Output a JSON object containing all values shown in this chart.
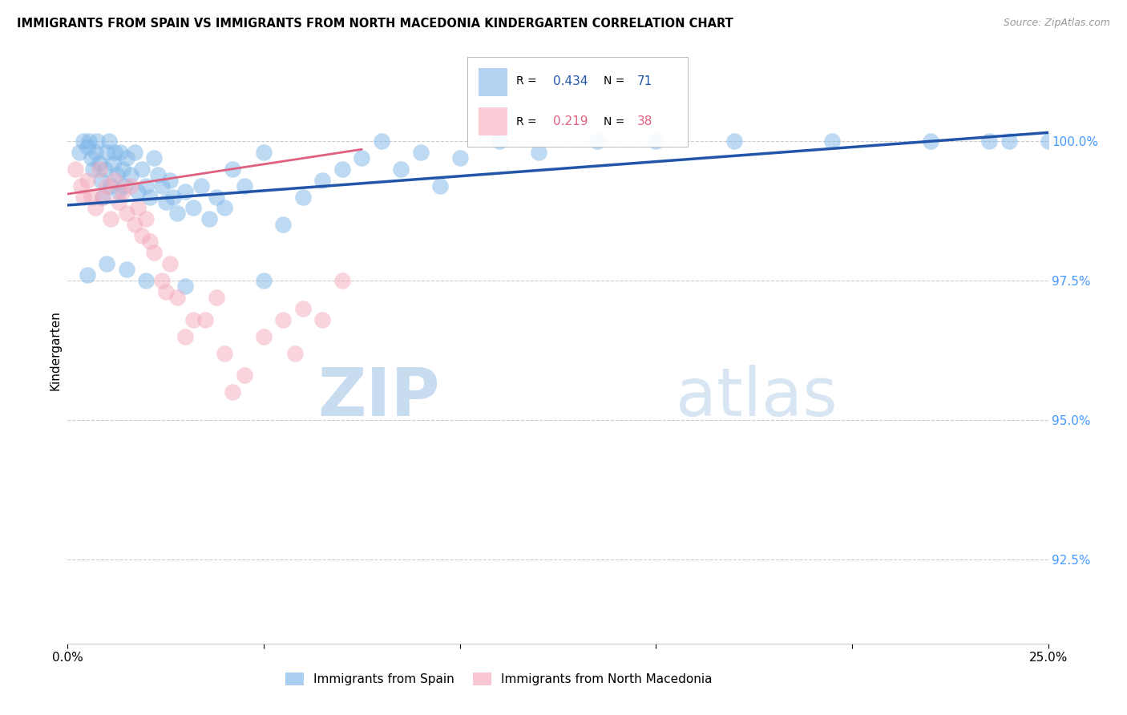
{
  "title": "IMMIGRANTS FROM SPAIN VS IMMIGRANTS FROM NORTH MACEDONIA KINDERGARTEN CORRELATION CHART",
  "source": "Source: ZipAtlas.com",
  "ylabel": "Kindergarten",
  "legend_spain": "Immigrants from Spain",
  "legend_macedonia": "Immigrants from North Macedonia",
  "spain_color": "#7EB6E8",
  "macedonia_color": "#F5AABC",
  "spain_line_color": "#2255AA",
  "macedonia_line_color": "#E06080",
  "r_spain": 0.434,
  "n_spain": 71,
  "r_macedonia": 0.219,
  "n_macedonia": 38,
  "x_range": [
    0.0,
    25.0
  ],
  "y_range": [
    91.0,
    101.5
  ],
  "y_ticks": [
    92.5,
    95.0,
    97.5,
    100.0
  ],
  "watermark_zip_color": "#C8DCF0",
  "watermark_atlas_color": "#C8DCF0",
  "spain_points_x": [
    0.3,
    0.4,
    0.5,
    0.55,
    0.6,
    0.65,
    0.7,
    0.75,
    0.8,
    0.85,
    0.9,
    0.95,
    1.0,
    1.05,
    1.1,
    1.15,
    1.2,
    1.25,
    1.3,
    1.35,
    1.4,
    1.45,
    1.5,
    1.6,
    1.7,
    1.8,
    1.9,
    2.0,
    2.1,
    2.2,
    2.3,
    2.4,
    2.5,
    2.6,
    2.7,
    2.8,
    3.0,
    3.2,
    3.4,
    3.6,
    3.8,
    4.0,
    4.2,
    4.5,
    5.0,
    5.5,
    6.0,
    6.5,
    7.0,
    7.5,
    8.0,
    8.5,
    9.0,
    9.5,
    10.0,
    11.0,
    12.0,
    13.5,
    15.0,
    17.0,
    19.5,
    22.0,
    23.5,
    24.0,
    25.0,
    0.5,
    1.0,
    1.5,
    2.0,
    3.0,
    5.0
  ],
  "spain_points_y": [
    99.8,
    100.0,
    99.9,
    100.0,
    99.7,
    99.5,
    99.8,
    100.0,
    99.6,
    99.3,
    99.0,
    99.5,
    99.8,
    100.0,
    99.2,
    99.6,
    99.8,
    99.4,
    99.1,
    99.8,
    99.5,
    99.2,
    99.7,
    99.4,
    99.8,
    99.1,
    99.5,
    99.2,
    99.0,
    99.7,
    99.4,
    99.2,
    98.9,
    99.3,
    99.0,
    98.7,
    99.1,
    98.8,
    99.2,
    98.6,
    99.0,
    98.8,
    99.5,
    99.2,
    99.8,
    98.5,
    99.0,
    99.3,
    99.5,
    99.7,
    100.0,
    99.5,
    99.8,
    99.2,
    99.7,
    100.0,
    99.8,
    100.0,
    100.0,
    100.0,
    100.0,
    100.0,
    100.0,
    100.0,
    100.0,
    97.6,
    97.8,
    97.7,
    97.5,
    97.4,
    97.5
  ],
  "macedonia_points_x": [
    0.2,
    0.35,
    0.4,
    0.5,
    0.6,
    0.7,
    0.8,
    0.9,
    1.0,
    1.1,
    1.2,
    1.3,
    1.4,
    1.5,
    1.6,
    1.7,
    1.8,
    1.9,
    2.0,
    2.1,
    2.2,
    2.4,
    2.6,
    2.8,
    3.0,
    3.5,
    4.0,
    4.5,
    5.0,
    5.5,
    6.0,
    2.5,
    3.2,
    3.8,
    4.2,
    5.8,
    6.5,
    7.0
  ],
  "macedonia_points_y": [
    99.5,
    99.2,
    99.0,
    99.3,
    99.0,
    98.8,
    99.5,
    99.0,
    99.2,
    98.6,
    99.3,
    98.9,
    99.1,
    98.7,
    99.2,
    98.5,
    98.8,
    98.3,
    98.6,
    98.2,
    98.0,
    97.5,
    97.8,
    97.2,
    96.5,
    96.8,
    96.2,
    95.8,
    96.5,
    96.8,
    97.0,
    97.3,
    96.8,
    97.2,
    95.5,
    96.2,
    96.8,
    97.5
  ]
}
